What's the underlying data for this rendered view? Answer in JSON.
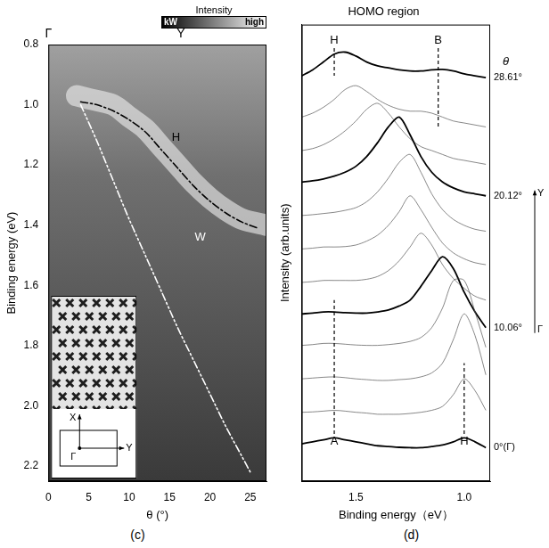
{
  "chart_data": [
    {
      "type": "line",
      "panel": "(c)",
      "x_label": "θ (°)",
      "y_label": "Binding energy (eV)",
      "xlim": [
        0,
        27
      ],
      "xticks": [
        0,
        5,
        10,
        15,
        20,
        25
      ],
      "ylim": [
        2.25,
        0.8
      ],
      "yticks": [
        0.8,
        {
          "value": 1.0,
          "label": "1.0"
        },
        1.2,
        1.4,
        1.6,
        1.8,
        {
          "value": 2.0,
          "label": "2.0"
        },
        2.2
      ],
      "grid": false,
      "top_labels": [
        {
          "text": "Γ",
          "x": 0
        },
        {
          "text": "Y",
          "x": 16.4
        }
      ],
      "colorbar": {
        "title": "Intensity",
        "low": "kW",
        "high": "high"
      },
      "inset": {
        "x_arrow": "X",
        "y_arrow": "Y",
        "center": "Γ"
      },
      "annotations": [
        {
          "text": "H",
          "x": 15.8,
          "y": 1.11
        },
        {
          "text": "W",
          "x": 18.8,
          "y": 1.44
        }
      ],
      "series": [
        {
          "type": "band",
          "color": "#ffffff",
          "x": [
            3.5,
            5,
            8,
            10,
            12,
            14,
            16,
            18,
            20,
            22,
            24,
            27
          ],
          "values": [
            0.97,
            0.98,
            1.0,
            1.04,
            1.08,
            1.14,
            1.2,
            1.26,
            1.31,
            1.35,
            1.38,
            1.4
          ]
        },
        {
          "color": "#000000",
          "line_style": "dashdot",
          "x": [
            4,
            6,
            8,
            10,
            12,
            14,
            16,
            18,
            20,
            22,
            24,
            26
          ],
          "values": [
            0.99,
            1.0,
            1.02,
            1.05,
            1.09,
            1.15,
            1.21,
            1.27,
            1.32,
            1.36,
            1.39,
            1.41
          ]
        },
        {
          "color": "#ffffff",
          "line_style": "dashdotdot",
          "x": [
            4,
            6,
            8,
            10,
            12,
            14,
            16,
            18,
            20,
            22,
            24,
            25
          ],
          "values": [
            1.0,
            1.12,
            1.25,
            1.38,
            1.5,
            1.62,
            1.74,
            1.85,
            1.96,
            2.07,
            2.17,
            2.22
          ]
        }
      ]
    },
    {
      "type": "line",
      "panel": "(d)",
      "title": "HOMO region",
      "x_label": "Binding energy（eV）",
      "y_label": "Intensity (arb.units)",
      "xlim": [
        1.75,
        0.88
      ],
      "xticks": [
        1.5,
        {
          "value": 1.0,
          "label": "1.0"
        }
      ],
      "ylim": [
        -6,
        110
      ],
      "tick_labels": "x",
      "grid": false,
      "theta_header": "θ",
      "theta_arrow": {
        "from": "Γ",
        "to": "Y"
      },
      "markers": [
        {
          "label": "A",
          "x": 1.6,
          "y": [
            6,
            40
          ]
        },
        {
          "label": "H",
          "x": 1.0,
          "y": [
            6,
            24
          ]
        },
        {
          "label": "H",
          "x": 1.6,
          "y": [
            104,
            97
          ]
        },
        {
          "label": "B",
          "x": 1.12,
          "y": [
            104,
            84
          ]
        }
      ],
      "x": [
        1.75,
        1.7,
        1.65,
        1.6,
        1.55,
        1.5,
        1.45,
        1.4,
        1.35,
        1.3,
        1.25,
        1.2,
        1.15,
        1.1,
        1.05,
        1.0,
        0.95,
        0.9
      ],
      "series": [
        {
          "label": "0°(Γ)",
          "color": "#000000",
          "values": [
            3.5,
            4,
            4.5,
            5,
            4.5,
            4,
            3.5,
            3,
            2.8,
            2.6,
            2.5,
            2.5,
            2.8,
            3.2,
            4,
            5,
            4,
            2.5
          ]
        },
        {
          "color": "#555555",
          "values": [
            11.5,
            11.6,
            11.8,
            12,
            11.8,
            11.5,
            11.3,
            11,
            11,
            11,
            11.2,
            11.5,
            12,
            13,
            16,
            20,
            17,
            12
          ]
        },
        {
          "color": "#555555",
          "values": [
            20,
            20.2,
            20.4,
            20.5,
            20.3,
            20,
            19.8,
            19.6,
            19.6,
            19.8,
            20,
            20.5,
            21.5,
            24,
            30,
            36.5,
            31,
            21
          ]
        },
        {
          "color": "#555555",
          "values": [
            28.5,
            28.7,
            29,
            29,
            28.8,
            28.6,
            28.5,
            28.5,
            28.7,
            29,
            29.5,
            30.5,
            33,
            38,
            45,
            45,
            37,
            28
          ]
        },
        {
          "label": "10.06°",
          "color": "#000000",
          "values": [
            36.5,
            36.7,
            37,
            37,
            36.8,
            36.7,
            36.7,
            37,
            37.5,
            38.5,
            40,
            43.5,
            47.5,
            51,
            48,
            42,
            37,
            33
          ]
        },
        {
          "color": "#555555",
          "values": [
            44.5,
            44.7,
            45,
            45,
            45,
            45,
            45.3,
            46,
            47.5,
            50,
            53.5,
            57,
            54,
            49,
            45.5,
            43,
            41,
            40
          ]
        },
        {
          "color": "#555555",
          "values": [
            53,
            53.2,
            53.5,
            53.5,
            53.6,
            54,
            55,
            56.5,
            59,
            62.5,
            66.5,
            63,
            58.5,
            54.5,
            52,
            50.5,
            49.5,
            49
          ]
        },
        {
          "color": "#555555",
          "values": [
            61.5,
            61.7,
            62,
            62.3,
            62.8,
            63.5,
            65,
            67.5,
            71,
            75,
            77,
            72.5,
            67,
            63,
            60.5,
            59,
            58,
            57.5
          ]
        },
        {
          "label": "20.12°",
          "color": "#000000",
          "values": [
            70,
            70.3,
            70.8,
            71.5,
            72.5,
            74,
            76.5,
            80,
            84,
            86.5,
            82,
            76.5,
            72.5,
            70,
            68.5,
            67.5,
            67,
            66.5
          ]
        },
        {
          "color": "#555555",
          "values": [
            78,
            78.5,
            79.5,
            81,
            83,
            85.5,
            88.5,
            90,
            87.5,
            84,
            81,
            79,
            78,
            77,
            76,
            75.5,
            75,
            74.5
          ]
        },
        {
          "color": "#555555",
          "values": [
            86.5,
            87.5,
            89,
            91,
            93.5,
            94.5,
            93,
            91,
            89.5,
            88.5,
            88,
            88,
            87.5,
            86.5,
            85.5,
            85,
            84.5,
            84
          ]
        },
        {
          "label": "28.61°",
          "color": "#000000",
          "values": [
            97,
            98.5,
            100.5,
            102.5,
            103,
            102,
            100.5,
            99.5,
            99,
            98.5,
            98.2,
            98.2,
            98.5,
            98.6,
            98.2,
            97.5,
            97,
            96.5
          ]
        }
      ]
    }
  ]
}
